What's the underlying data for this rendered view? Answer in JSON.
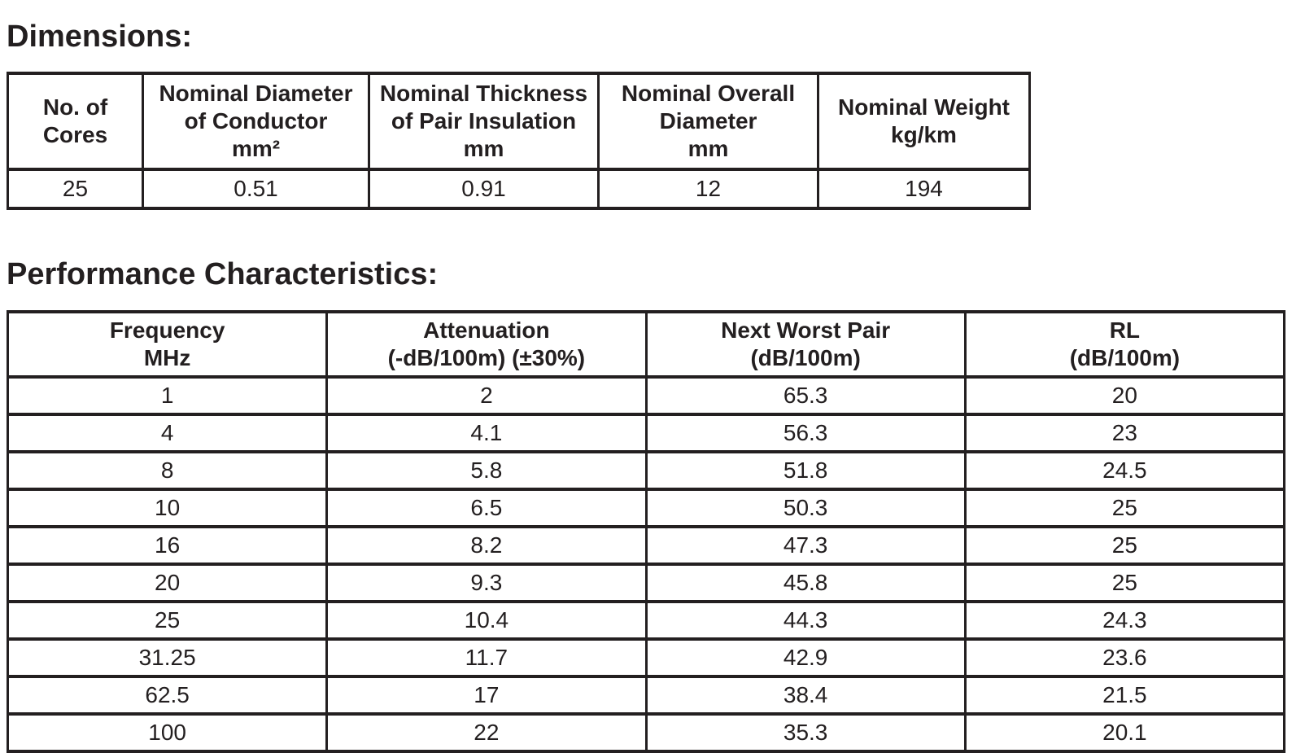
{
  "page": {
    "background": "#ffffff",
    "ink_color": "#231f20",
    "border_color": "#231f20"
  },
  "dimensions": {
    "title": "Dimensions:",
    "columns": [
      "No. of\nCores",
      "Nominal Diameter\nof Conductor\nmm²",
      "Nominal Thickness\nof Pair Insulation\nmm",
      "Nominal Overall\nDiameter\nmm",
      "Nominal Weight\nkg/km"
    ],
    "rows": [
      [
        "25",
        "0.51",
        "0.91",
        "12",
        "194"
      ]
    ]
  },
  "performance": {
    "title": "Performance Characteristics:",
    "columns": [
      "Frequency\nMHz",
      "Attenuation\n(-dB/100m) (±30%)",
      "Next Worst Pair\n(dB/100m)",
      "RL\n(dB/100m)"
    ],
    "rows": [
      [
        "1",
        "2",
        "65.3",
        "20"
      ],
      [
        "4",
        "4.1",
        "56.3",
        "23"
      ],
      [
        "8",
        "5.8",
        "51.8",
        "24.5"
      ],
      [
        "10",
        "6.5",
        "50.3",
        "25"
      ],
      [
        "16",
        "8.2",
        "47.3",
        "25"
      ],
      [
        "20",
        "9.3",
        "45.8",
        "25"
      ],
      [
        "25",
        "10.4",
        "44.3",
        "24.3"
      ],
      [
        "31.25",
        "11.7",
        "42.9",
        "23.6"
      ],
      [
        "62.5",
        "17",
        "38.4",
        "21.5"
      ],
      [
        "100",
        "22",
        "35.3",
        "20.1"
      ]
    ]
  }
}
